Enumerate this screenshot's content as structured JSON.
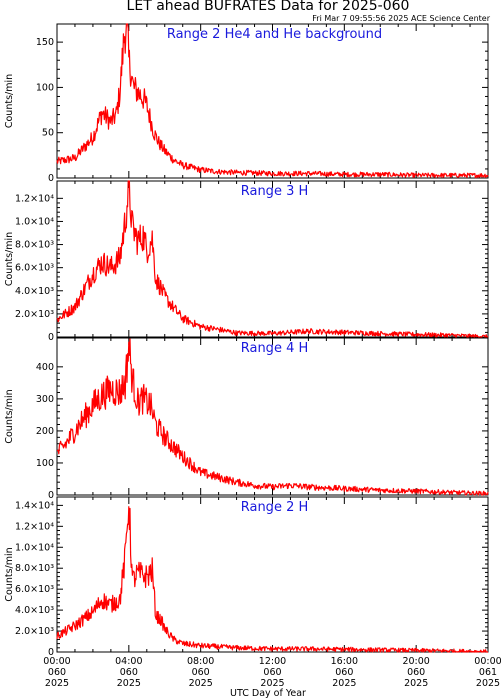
{
  "header": {
    "title": "LET ahead BUFRATES Data for 2025-060",
    "timestamp": "Fri Mar  7 09:55:56 2025 ACE Science Center"
  },
  "colors": {
    "series": "#ff0000",
    "panel_label": "#1a1adc",
    "axes": "#000000"
  },
  "chart_data": [
    {
      "type": "line",
      "title": "Range 2 He4 and He background",
      "ylabel": "Counts/min",
      "ylim": [
        0,
        170
      ],
      "yticks": [
        0,
        50,
        100,
        150
      ],
      "ytick_labels": [
        "0",
        "50",
        "100",
        "150"
      ],
      "xlim": [
        0,
        24
      ],
      "series": [
        {
          "x": [
            0,
            1,
            2,
            2.5,
            3,
            3.3,
            3.5,
            3.75,
            3.9,
            4.0,
            4.1,
            4.25,
            4.5,
            4.8,
            5,
            5.2,
            5.4,
            5.7,
            6,
            6.5,
            7,
            8,
            9,
            10,
            12,
            14,
            16,
            18,
            20,
            22,
            23,
            24
          ],
          "values": [
            18,
            22,
            45,
            72,
            62,
            70,
            95,
            158,
            170,
            130,
            120,
            100,
            95,
            88,
            80,
            65,
            50,
            38,
            30,
            20,
            14,
            9,
            7,
            6,
            5,
            5,
            4,
            4,
            3,
            3,
            3,
            3
          ]
        }
      ]
    },
    {
      "type": "line",
      "title": "Range 3 H",
      "ylabel": "Counts/min",
      "ylim": [
        0,
        13500
      ],
      "yticks": [
        0,
        2000,
        4000,
        6000,
        8000,
        10000,
        12000
      ],
      "ytick_labels": [
        "0",
        "2.0×10³",
        "4.0×10³",
        "6.0×10³",
        "8.0×10³",
        "1.0×10⁴",
        "1.2×10⁴"
      ],
      "xlim": [
        0,
        24
      ],
      "series": [
        {
          "x": [
            0,
            1,
            2,
            2.5,
            3,
            3.5,
            3.8,
            4.0,
            4.2,
            4.5,
            4.8,
            5.0,
            5.3,
            5.5,
            5.8,
            6,
            6.5,
            7,
            8,
            9,
            10,
            12,
            14,
            16,
            18,
            20,
            22,
            23,
            24
          ],
          "values": [
            1500,
            2600,
            5500,
            6500,
            6000,
            6800,
            10000,
            13000,
            9500,
            8300,
            8800,
            7500,
            8500,
            5000,
            4200,
            3500,
            2500,
            1600,
            900,
            650,
            350,
            300,
            500,
            400,
            300,
            220,
            150,
            80,
            30
          ]
        }
      ]
    },
    {
      "type": "line",
      "title": "Range 4 H",
      "ylabel": "Counts/min",
      "ylim": [
        0,
        490
      ],
      "yticks": [
        0,
        100,
        200,
        300,
        400
      ],
      "ytick_labels": [
        "0",
        "100",
        "200",
        "300",
        "400"
      ],
      "xlim": [
        0,
        24
      ],
      "series": [
        {
          "x": [
            0,
            0.5,
            1,
            1.5,
            2,
            2.5,
            3,
            3.5,
            3.8,
            4.0,
            4.2,
            4.5,
            4.8,
            5.2,
            5.5,
            6,
            6.5,
            7,
            7.5,
            8,
            9,
            10,
            11,
            12,
            13,
            14,
            16,
            18,
            20,
            22,
            23,
            24
          ],
          "values": [
            130,
            160,
            200,
            240,
            280,
            310,
            330,
            320,
            350,
            470,
            360,
            290,
            300,
            280,
            220,
            180,
            150,
            120,
            95,
            70,
            55,
            40,
            30,
            25,
            30,
            25,
            20,
            15,
            12,
            8,
            6,
            5
          ]
        }
      ]
    },
    {
      "type": "line",
      "title": "Range 2 H",
      "ylabel": "Counts/min",
      "ylim": [
        0,
        14800
      ],
      "yticks": [
        0,
        2000,
        4000,
        6000,
        8000,
        10000,
        12000,
        14000
      ],
      "ytick_labels": [
        "0",
        "2.0×10³",
        "4.0×10³",
        "6.0×10³",
        "8.0×10³",
        "1.0×10⁴",
        "1.2×10⁴",
        "1.4×10⁴"
      ],
      "xlim": [
        0,
        24
      ],
      "xticks": [
        0,
        4,
        8,
        12,
        16,
        20,
        24
      ],
      "xtick_labels": [
        [
          "00:00",
          "060",
          "2025"
        ],
        [
          "04:00",
          "060",
          "2025"
        ],
        [
          "08:00",
          "060",
          "2025"
        ],
        [
          "12:00",
          "060",
          "2025"
        ],
        [
          "16:00",
          "060",
          "2025"
        ],
        [
          "20:00",
          "060",
          "2025"
        ],
        [
          "00:00",
          "061",
          "2025"
        ]
      ],
      "xlabel": "UTC Day of Year",
      "series": [
        {
          "x": [
            0,
            1,
            2,
            2.5,
            3,
            3.5,
            3.8,
            4.0,
            4.2,
            4.5,
            5,
            5.3,
            5.5,
            5.8,
            6,
            6.5,
            7,
            8,
            9,
            10,
            12,
            14,
            16,
            18,
            20,
            22,
            23,
            24
          ],
          "values": [
            1500,
            2500,
            3800,
            5000,
            4500,
            5000,
            9000,
            14500,
            6800,
            7500,
            7200,
            7800,
            3500,
            3000,
            2200,
            1200,
            800,
            600,
            500,
            400,
            300,
            300,
            250,
            200,
            150,
            100,
            60,
            30
          ]
        }
      ]
    }
  ]
}
